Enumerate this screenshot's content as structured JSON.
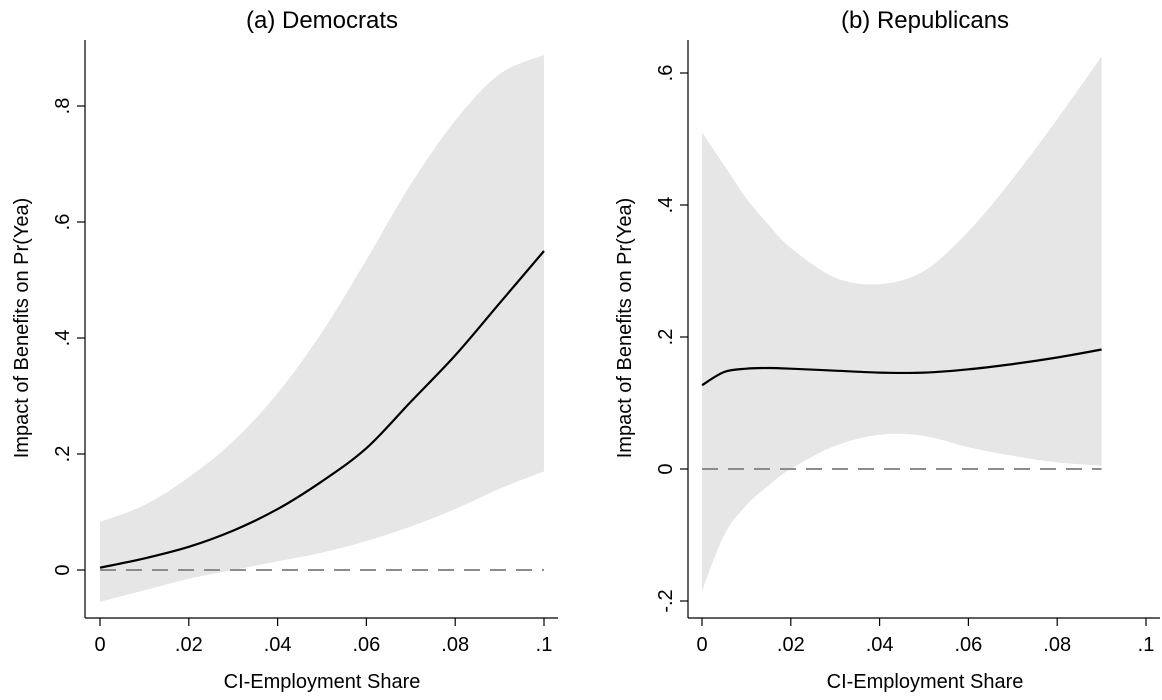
{
  "colors": {
    "band": "#e6e6e6",
    "line": "#000000",
    "reference": "#8c8c8c",
    "axis": "#000000"
  },
  "chart_data": [
    {
      "type": "line",
      "title": "(a) Democrats",
      "xlabel": "CI-Employment Share",
      "ylabel": "Impact of Benefits on Pr(Yea)",
      "xlim": [
        0,
        0.1
      ],
      "ylim": [
        -0.05,
        0.9
      ],
      "x_ticks": [
        {
          "value": 0,
          "label": "0"
        },
        {
          "value": 0.02,
          "label": ".02"
        },
        {
          "value": 0.04,
          "label": ".04"
        },
        {
          "value": 0.06,
          "label": ".06"
        },
        {
          "value": 0.08,
          "label": ".08"
        },
        {
          "value": 0.1,
          "label": ".1"
        }
      ],
      "y_ticks": [
        {
          "value": 0,
          "label": "0"
        },
        {
          "value": 0.2,
          "label": ".2"
        },
        {
          "value": 0.4,
          "label": ".4"
        },
        {
          "value": 0.6,
          "label": ".6"
        },
        {
          "value": 0.8,
          "label": ".8"
        }
      ],
      "reference_line": 0,
      "grid": false,
      "x": [
        0,
        0.01,
        0.02,
        0.03,
        0.04,
        0.05,
        0.06,
        0.07,
        0.08,
        0.09,
        0.1
      ],
      "series": [
        {
          "role": "estimate",
          "values": [
            0.004,
            0.02,
            0.04,
            0.068,
            0.105,
            0.153,
            0.21,
            0.29,
            0.37,
            0.46,
            0.55
          ]
        },
        {
          "role": "ci_upper",
          "values": [
            0.083,
            0.112,
            0.16,
            0.222,
            0.305,
            0.41,
            0.535,
            0.665,
            0.775,
            0.855,
            0.888
          ]
        },
        {
          "role": "ci_lower",
          "values": [
            -0.055,
            -0.035,
            -0.015,
            0.0,
            0.015,
            0.03,
            0.05,
            0.075,
            0.105,
            0.14,
            0.17
          ]
        }
      ]
    },
    {
      "type": "line",
      "title": "(b) Republicans",
      "xlabel": "CI-Employment Share",
      "ylabel": "Impact of Benefits on Pr(Yea)",
      "xlim": [
        0,
        0.1
      ],
      "ylim": [
        -0.2,
        0.65
      ],
      "x_ticks": [
        {
          "value": 0,
          "label": "0"
        },
        {
          "value": 0.02,
          "label": ".02"
        },
        {
          "value": 0.04,
          "label": ".04"
        },
        {
          "value": 0.06,
          "label": ".06"
        },
        {
          "value": 0.08,
          "label": ".08"
        },
        {
          "value": 0.1,
          "label": ".1"
        }
      ],
      "y_ticks": [
        {
          "value": -0.2,
          "label": "-.2"
        },
        {
          "value": 0,
          "label": "0"
        },
        {
          "value": 0.2,
          "label": ".2"
        },
        {
          "value": 0.4,
          "label": ".4"
        },
        {
          "value": 0.6,
          "label": ".6"
        }
      ],
      "reference_line": 0,
      "grid": false,
      "x": [
        0,
        0.005,
        0.01,
        0.015,
        0.02,
        0.03,
        0.04,
        0.05,
        0.06,
        0.07,
        0.08,
        0.09
      ],
      "series": [
        {
          "role": "estimate",
          "values": [
            0.127,
            0.147,
            0.152,
            0.153,
            0.152,
            0.149,
            0.146,
            0.146,
            0.151,
            0.159,
            0.169,
            0.181
          ]
        },
        {
          "role": "ci_upper",
          "values": [
            0.51,
            0.46,
            0.41,
            0.37,
            0.335,
            0.29,
            0.28,
            0.3,
            0.36,
            0.44,
            0.53,
            0.625
          ]
        },
        {
          "role": "ci_lower",
          "values": [
            -0.185,
            -0.1,
            -0.055,
            -0.025,
            0.0,
            0.035,
            0.052,
            0.05,
            0.033,
            0.02,
            0.01,
            0.005
          ]
        }
      ]
    }
  ]
}
